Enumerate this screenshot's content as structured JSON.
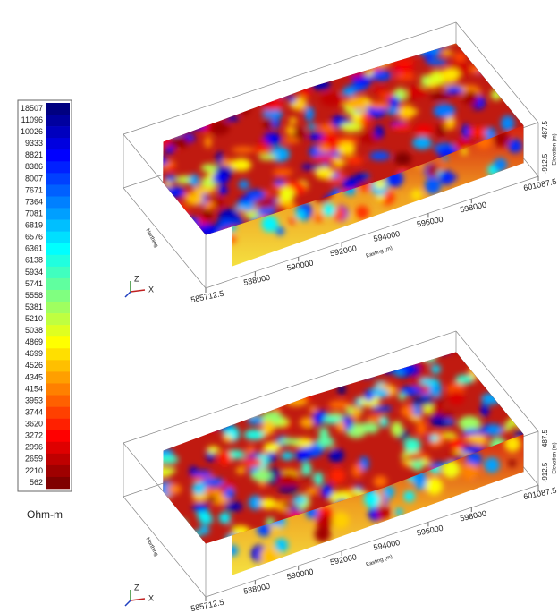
{
  "legend": {
    "labels": [
      "18507",
      "11096",
      "10026",
      "9333",
      "8821",
      "8386",
      "8007",
      "7671",
      "7364",
      "7081",
      "6819",
      "6576",
      "6361",
      "6138",
      "5934",
      "5741",
      "5558",
      "5381",
      "5210",
      "5038",
      "4869",
      "4699",
      "4526",
      "4345",
      "4154",
      "3953",
      "3744",
      "3620",
      "3272",
      "2996",
      "2659",
      "2210",
      "562"
    ],
    "unit": "Ohm-m"
  },
  "panels": [
    {
      "easting_ticks": [
        "585712.5",
        "588000",
        "590000",
        "592000",
        "594000",
        "596000",
        "598000",
        "601087.5"
      ],
      "easting_title": "Easting (m)",
      "elevation_ticks": [
        "487.5",
        "-912.5"
      ],
      "elevation_title": "Elevation (m)",
      "northing_title": "Northing",
      "axes": [
        "Z",
        "X"
      ]
    },
    {
      "easting_ticks": [
        "585712.5",
        "588000",
        "590000",
        "592000",
        "594000",
        "596000",
        "598000",
        "601087.5"
      ],
      "easting_title": "Easting (m)",
      "elevation_ticks": [
        "487.5",
        "-912.5"
      ],
      "elevation_title": "Elevation (m)",
      "northing_title": "Northing",
      "axes": [
        "Z",
        "X"
      ]
    }
  ]
}
